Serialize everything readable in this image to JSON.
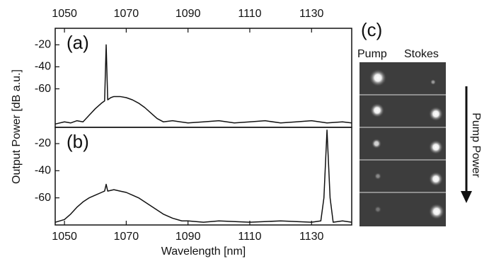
{
  "chart_data": [
    {
      "type": "line",
      "panel_label": "(a)",
      "y_label": "Output Power [dB a.u.]",
      "xaxis_position": "top",
      "xlim": [
        1047,
        1143
      ],
      "ylim": [
        -95,
        -5
      ],
      "xticks": [
        1050,
        1070,
        1090,
        1110,
        1130
      ],
      "yticks": [
        -20,
        -40,
        -60
      ],
      "x": [
        1047,
        1050,
        1052,
        1054,
        1056,
        1058,
        1060,
        1062,
        1063,
        1063.5,
        1064,
        1065,
        1066,
        1068,
        1070,
        1072,
        1074,
        1076,
        1078,
        1080,
        1082,
        1085,
        1090,
        1095,
        1100,
        1105,
        1110,
        1115,
        1120,
        1125,
        1130,
        1135,
        1140,
        1143
      ],
      "series": [
        {
          "color": "#111111",
          "values": [
            -92,
            -90,
            -91,
            -89,
            -90,
            -84,
            -78,
            -73,
            -71,
            -20,
            -70,
            -68,
            -67,
            -67,
            -68,
            -70,
            -73,
            -77,
            -82,
            -87,
            -90,
            -89,
            -91,
            -90,
            -89,
            -91,
            -90,
            -89,
            -91,
            -90,
            -89,
            -91,
            -90,
            -91
          ]
        }
      ]
    },
    {
      "type": "line",
      "panel_label": "(b)",
      "x_label": "Wavelength [nm]",
      "xaxis_position": "bottom",
      "xlim": [
        1047,
        1143
      ],
      "ylim": [
        -80,
        -8
      ],
      "xticks": [
        1050,
        1070,
        1090,
        1110,
        1130
      ],
      "yticks": [
        -20,
        -40,
        -60
      ],
      "x": [
        1047,
        1050,
        1052,
        1054,
        1056,
        1058,
        1060,
        1062,
        1063,
        1063.5,
        1064,
        1066,
        1068,
        1070,
        1072,
        1074,
        1076,
        1078,
        1080,
        1082,
        1085,
        1088,
        1090,
        1095,
        1100,
        1110,
        1120,
        1130,
        1133,
        1134,
        1135,
        1136,
        1137,
        1140,
        1143
      ],
      "series": [
        {
          "color": "#111111",
          "values": [
            -78,
            -76,
            -72,
            -67,
            -63,
            -60,
            -58,
            -56,
            -55,
            -50,
            -55,
            -54,
            -55,
            -56,
            -58,
            -60,
            -63,
            -66,
            -69,
            -72,
            -75,
            -77,
            -77,
            -78,
            -77,
            -78,
            -77,
            -78,
            -77,
            -60,
            -10,
            -60,
            -78,
            -77,
            -78
          ]
        }
      ]
    }
  ],
  "panel_c": {
    "label": "(c)",
    "columns": [
      "Pump",
      "Stokes"
    ],
    "arrow_label": "Pump Power"
  }
}
